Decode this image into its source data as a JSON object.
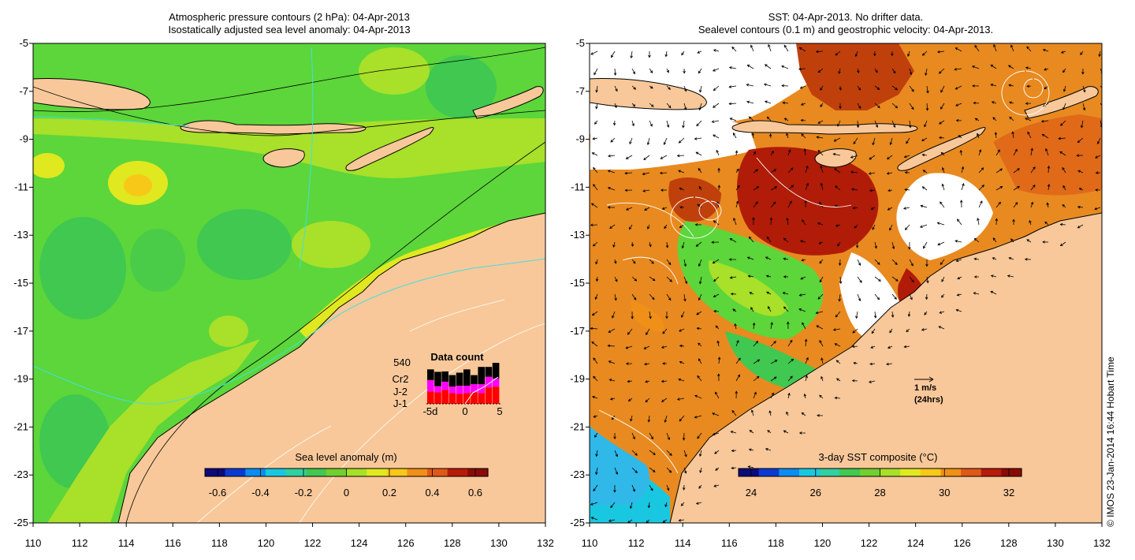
{
  "left_panel": {
    "title_line1": "Atmospheric pressure contours (2 hPa): 04-Apr-2013",
    "title_line2": "Isostatically adjusted sea level anomaly: 04-Apr-2013",
    "colorbar": {
      "title": "Sea level anomaly (m)",
      "ticks": [
        "-0.6",
        "-0.4",
        "-0.2",
        "0",
        "0.2",
        "0.4",
        "0.6"
      ],
      "colors": [
        "#0b0b7a",
        "#0a3ad0",
        "#0a8cf0",
        "#19c8e0",
        "#30d0a0",
        "#40c850",
        "#70d030",
        "#a8e028",
        "#e0e820",
        "#f8c818",
        "#f09018",
        "#e05818",
        "#b81a0a",
        "#8a0a06"
      ]
    },
    "data_count": {
      "total": "540",
      "title": "Data count",
      "legend": [
        {
          "label": "Cr2",
          "color": "#000000"
        },
        {
          "label": "J-2",
          "color": "#ff00ff"
        },
        {
          "label": "J-1",
          "color": "#ff0000"
        }
      ],
      "x_labels": [
        "-5d",
        "0",
        "5"
      ],
      "bars": [
        {
          "j1": 0.3,
          "j2": 0.28,
          "cr2": 0.26
        },
        {
          "j1": 0.28,
          "j2": 0.15,
          "cr2": 0.35
        },
        {
          "j1": 0.34,
          "j2": 0.2,
          "cr2": 0.25
        },
        {
          "j1": 0.26,
          "j2": 0.16,
          "cr2": 0.28
        },
        {
          "j1": 0.24,
          "j2": 0.2,
          "cr2": 0.32
        },
        {
          "j1": 0.26,
          "j2": 0.18,
          "cr2": 0.4
        },
        {
          "j1": 0.28,
          "j2": 0.2,
          "cr2": 0.22
        },
        {
          "j1": 0.26,
          "j2": 0.22,
          "cr2": 0.42
        },
        {
          "j1": 0.4,
          "j2": 0.26,
          "cr2": 0.24
        },
        {
          "j1": 0.42,
          "j2": 0.2,
          "cr2": 0.38
        }
      ]
    }
  },
  "right_panel": {
    "title_line1": "SST: 04-Apr-2013. No drifter data.",
    "title_line2": "Sealevel contours (0.1 m) and geostrophic velocity: 04-Apr-2013.",
    "colorbar": {
      "title": "3-day SST composite (°C)",
      "ticks": [
        "24",
        "26",
        "28",
        "30",
        "32"
      ],
      "colors": [
        "#0b0b7a",
        "#0a3ad0",
        "#0a8cf0",
        "#19c8e0",
        "#30d0a0",
        "#40c850",
        "#70d030",
        "#a8e028",
        "#e0e820",
        "#f8c818",
        "#f09018",
        "#e05818",
        "#b81a0a",
        "#8a0a06"
      ]
    },
    "velocity_scale": {
      "label1": "1 m/s",
      "label2": "(24hrs)"
    }
  },
  "axes": {
    "lon_ticks": [
      "110",
      "112",
      "114",
      "116",
      "118",
      "120",
      "122",
      "124",
      "126",
      "128",
      "130",
      "132"
    ],
    "lat_ticks": [
      "-5",
      "-7",
      "-9",
      "-11",
      "-13",
      "-15",
      "-17",
      "-19",
      "-21",
      "-23",
      "-25"
    ],
    "lon_range": [
      110,
      132
    ],
    "lat_range": [
      -25,
      -5
    ]
  },
  "colors": {
    "land": "#f8c89a",
    "sea_green": "#5cd63a",
    "sea_yellow_green": "#a8e02a",
    "sea_orange": "#e88a20",
    "sea_dark_red": "#b01c08"
  },
  "credit": "© IMOS 23-Jan-2014 16:44 Hobart Time"
}
